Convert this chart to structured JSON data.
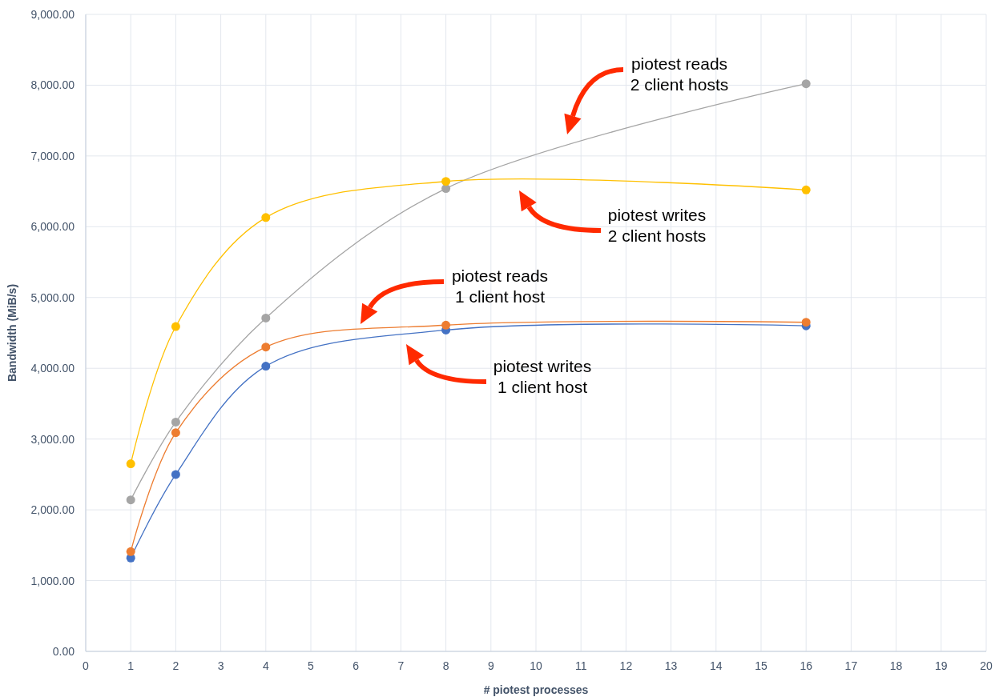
{
  "chart_data": {
    "type": "line",
    "xlabel": "# piotest processes",
    "ylabel": "Bandwidth (MiB/s)",
    "xlim": [
      0,
      20
    ],
    "xticks": [
      0,
      1,
      2,
      3,
      4,
      5,
      6,
      7,
      8,
      9,
      10,
      11,
      12,
      13,
      14,
      15,
      16,
      17,
      18,
      19,
      20
    ],
    "ylim": [
      0,
      9000
    ],
    "yticks": [
      {
        "value": 0,
        "label": "0.00"
      },
      {
        "value": 1000,
        "label": "1,000.00"
      },
      {
        "value": 2000,
        "label": "2,000.00"
      },
      {
        "value": 3000,
        "label": "3,000.00"
      },
      {
        "value": 4000,
        "label": "4,000.00"
      },
      {
        "value": 5000,
        "label": "5,000.00"
      },
      {
        "value": 6000,
        "label": "6,000.00"
      },
      {
        "value": 7000,
        "label": "7,000.00"
      },
      {
        "value": 8000,
        "label": "8,000.00"
      },
      {
        "value": 9000,
        "label": "9,000.00"
      }
    ],
    "x": [
      1,
      2,
      4,
      8,
      16
    ],
    "series": [
      {
        "color": "#4472c4",
        "values": [
          1320,
          2500,
          4030,
          4540,
          4600
        ]
      },
      {
        "color": "#ed7d31",
        "values": [
          1410,
          3090,
          4300,
          4610,
          4650
        ]
      },
      {
        "color": "#a5a5a5",
        "values": [
          2140,
          3240,
          4710,
          6540,
          8020
        ]
      },
      {
        "color": "#ffc000",
        "values": [
          2650,
          4590,
          6130,
          6640,
          6520
        ]
      }
    ],
    "annotations": [
      "piotest reads\n2 client hosts",
      "piotest writes\n2 client hosts",
      "piotest reads\n1 client host",
      "piotest writes\n1 client host"
    ],
    "grid": true,
    "marker": "circle",
    "line_style": "solid"
  }
}
